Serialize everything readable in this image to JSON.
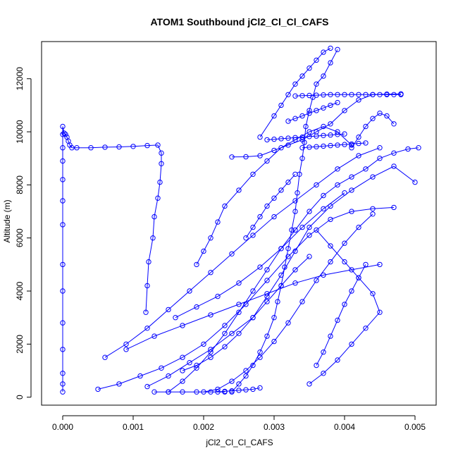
{
  "chart_data": {
    "type": "line",
    "title": "ATOM1 Southbound jCl2_Cl_Cl_CAFS",
    "xlabel": "jCl2_Cl_Cl_CAFS",
    "ylabel": "Altitude (m)",
    "xlim": [
      -0.0003,
      0.0053
    ],
    "ylim": [
      -300,
      13400
    ],
    "x_ticks": [
      0.0,
      0.001,
      0.002,
      0.003,
      0.004,
      0.005
    ],
    "x_tick_labels": [
      "0.000",
      "0.001",
      "0.002",
      "0.003",
      "0.004",
      "0.005"
    ],
    "y_ticks": [
      0,
      2000,
      4000,
      6000,
      8000,
      10000,
      12000
    ],
    "y_tick_labels": [
      "0",
      "2000",
      "4000",
      "6000",
      "8000",
      "10000",
      "12000"
    ],
    "grid": false,
    "marker": "open-circle",
    "color": "#0000ff",
    "series": [
      {
        "x": [
          0.0,
          0.0,
          0.0,
          0.0,
          0.0,
          0.0,
          0.0,
          0.0,
          0.0,
          0.0,
          0.0,
          0.0,
          0.0,
          0.0,
          2e-05,
          4e-05,
          6e-05,
          8e-05,
          0.0001,
          0.00013,
          0.0002,
          0.0004,
          0.0006,
          0.0008,
          0.001,
          0.0012,
          0.00135,
          0.0014,
          0.0014,
          0.00138,
          0.00135,
          0.0013,
          0.00128,
          0.00122,
          0.0012,
          0.00118
        ],
        "y": [
          200,
          500,
          900,
          1800,
          2800,
          4000,
          5000,
          6500,
          7400,
          8200,
          8900,
          9400,
          9900,
          10200,
          9950,
          9900,
          9800,
          9650,
          9500,
          9400,
          9400,
          9400,
          9420,
          9430,
          9450,
          9480,
          9500,
          9200,
          8800,
          8100,
          7500,
          6800,
          6000,
          5100,
          4200,
          3200
        ]
      },
      {
        "x": [
          0.0024,
          0.0025,
          0.0026,
          0.0027,
          0.0028,
          0.0029,
          0.003,
          0.00305,
          0.0031,
          0.00315,
          0.0032,
          0.00325,
          0.0033,
          0.00333,
          0.00336,
          0.0034,
          0.00343,
          0.00345,
          0.0035,
          0.00355,
          0.0036,
          0.0037,
          0.0038,
          0.0039
        ],
        "y": [
          200,
          500,
          800,
          1200,
          1700,
          2300,
          3000,
          3600,
          4200,
          4900,
          5600,
          6300,
          7000,
          7700,
          8400,
          9000,
          9600,
          10200,
          10800,
          11300,
          11800,
          12100,
          12600,
          13100
        ]
      },
      {
        "x": [
          0.0015,
          0.0017,
          0.0019,
          0.0021,
          0.0023,
          0.0025,
          0.0027,
          0.0029,
          0.0031,
          0.0033,
          0.0035,
          0.0037,
          0.0039,
          0.0041,
          0.0043,
          0.0045,
          0.0047,
          0.0049,
          0.00505
        ],
        "y": [
          200,
          600,
          1100,
          1700,
          2400,
          3200,
          4000,
          4800,
          5600,
          6300,
          7000,
          7600,
          8000,
          8300,
          8600,
          9000,
          9200,
          9350,
          9400
        ]
      },
      {
        "x": [
          0.0012,
          0.0015,
          0.0018,
          0.0021,
          0.0024,
          0.0027,
          0.0029,
          0.0031,
          0.0033,
          0.0035,
          0.0038,
          0.0041,
          0.0044,
          0.0047,
          0.005
        ],
        "y": [
          400,
          800,
          1300,
          1800,
          2400,
          3000,
          3800,
          4600,
          5500,
          6400,
          7200,
          7800,
          8300,
          8700,
          8100
        ]
      },
      {
        "x": [
          0.0006,
          0.0009,
          0.0012,
          0.0015,
          0.0018,
          0.0021,
          0.0024,
          0.0027,
          0.003,
          0.0033,
          0.0036,
          0.0039,
          0.0042,
          0.0045
        ],
        "y": [
          1500,
          2000,
          2600,
          3300,
          4000,
          4700,
          5400,
          6100,
          6800,
          7400,
          8000,
          8600,
          9100,
          9400
        ]
      },
      {
        "x": [
          0.0005,
          0.0008,
          0.0011,
          0.0014,
          0.0017,
          0.002,
          0.0023,
          0.0026,
          0.0029,
          0.0032,
          0.0035,
          0.0038,
          0.0041,
          0.0044,
          0.0047
        ],
        "y": [
          300,
          500,
          800,
          1100,
          1500,
          2000,
          2700,
          3500,
          4400,
          5300,
          6100,
          6700,
          7000,
          7100,
          7150
        ]
      },
      {
        "x": [
          0.0019,
          0.002,
          0.0021,
          0.0022,
          0.0023,
          0.0025,
          0.0027,
          0.0029,
          0.0031,
          0.0033,
          0.0035,
          0.0037,
          0.0039,
          0.0041
        ],
        "y": [
          5000,
          5500,
          6000,
          6600,
          7200,
          7800,
          8400,
          8900,
          9400,
          9700,
          10000,
          10200,
          10000,
          9500
        ]
      },
      {
        "x": [
          0.0024,
          0.0026,
          0.0028,
          0.003,
          0.0032,
          0.0034,
          0.0036,
          0.0038,
          0.004,
          0.0042,
          0.0044,
          0.0046,
          0.0048
        ],
        "y": [
          9050,
          9060,
          9100,
          9300,
          9500,
          9700,
          10000,
          10300,
          10800,
          11200,
          11400,
          11420,
          11430
        ]
      },
      {
        "x": [
          0.0028,
          0.003,
          0.0031,
          0.0032,
          0.0033,
          0.0034,
          0.0035,
          0.0036,
          0.0037,
          0.0038
        ],
        "y": [
          9800,
          10600,
          11000,
          11400,
          11800,
          12100,
          12400,
          12700,
          13000,
          13150
        ]
      },
      {
        "x": [
          0.002,
          0.0022,
          0.0024,
          0.0026,
          0.0028,
          0.003,
          0.0032,
          0.0034,
          0.0036,
          0.0038,
          0.004,
          0.0042,
          0.0044
        ],
        "y": [
          200,
          300,
          600,
          1000,
          1500,
          2100,
          2800,
          3600,
          4400,
          5100,
          5800,
          6400,
          6900
        ]
      },
      {
        "x": [
          0.0035,
          0.0037,
          0.0039,
          0.0041,
          0.0043,
          0.0045,
          0.0044,
          0.0042,
          0.004,
          0.0038,
          0.0036
        ],
        "y": [
          500,
          900,
          1400,
          2000,
          2600,
          3200,
          3900,
          4500,
          5100,
          5700,
          6300
        ]
      },
      {
        "x": [
          0.0009,
          0.0013,
          0.0017,
          0.0021,
          0.0025,
          0.0029,
          0.0033,
          0.0037,
          0.0041,
          0.0045
        ],
        "y": [
          1800,
          2300,
          2700,
          3100,
          3500,
          3900,
          4300,
          4600,
          4800,
          5000
        ]
      },
      {
        "x": [
          0.0016,
          0.0019,
          0.0022,
          0.0025,
          0.0028,
          0.0031,
          0.0034,
          0.0037,
          0.004
        ],
        "y": [
          3000,
          3400,
          3800,
          4300,
          4900,
          5600,
          6400,
          7100,
          7700
        ]
      },
      {
        "x": [
          0.0036,
          0.0037,
          0.0038,
          0.0039,
          0.004,
          0.0041,
          0.0042,
          0.0043
        ],
        "y": [
          1200,
          1700,
          2300,
          2900,
          3500,
          4000,
          4500,
          5000
        ]
      },
      {
        "x": [
          0.0029,
          0.003,
          0.0031,
          0.0032,
          0.0033,
          0.0034,
          0.0035,
          0.0036,
          0.0037,
          0.0038,
          0.0039,
          0.004
        ],
        "y": [
          9700,
          9720,
          9740,
          9760,
          9780,
          9800,
          9820,
          9840,
          9860,
          9880,
          9900,
          9920
        ]
      },
      {
        "x": [
          0.0034,
          0.0035,
          0.0036,
          0.0037,
          0.0038,
          0.0039,
          0.004,
          0.0041,
          0.0042,
          0.0043
        ],
        "y": [
          9400,
          9420,
          9440,
          9460,
          9480,
          9500,
          9520,
          9540,
          9560,
          9580
        ]
      },
      {
        "x": [
          0.0033,
          0.0034,
          0.0035,
          0.0036,
          0.0037,
          0.0038,
          0.0039,
          0.004,
          0.0041,
          0.0042,
          0.0043,
          0.0044,
          0.0045,
          0.0046,
          0.0047,
          0.0048
        ],
        "y": [
          11350,
          11360,
          11370,
          11380,
          11390,
          11400,
          11400,
          11400,
          11400,
          11400,
          11400,
          11400,
          11400,
          11400,
          11400,
          11400
        ]
      },
      {
        "x": [
          0.0022,
          0.0023,
          0.0024,
          0.0025,
          0.0026,
          0.0027,
          0.0028
        ],
        "y": [
          200,
          220,
          240,
          260,
          280,
          300,
          350
        ]
      },
      {
        "x": [
          0.0013,
          0.0015,
          0.0017,
          0.0019,
          0.0021,
          0.0023
        ],
        "y": [
          200,
          200,
          200,
          200,
          200,
          200
        ]
      },
      {
        "x": [
          0.0032,
          0.0033,
          0.0034,
          0.0035,
          0.0036,
          0.0037,
          0.0038,
          0.0039
        ],
        "y": [
          10400,
          10500,
          10600,
          10700,
          10800,
          10900,
          11000,
          11100
        ]
      },
      {
        "x": [
          0.0041,
          0.0042,
          0.0043,
          0.0044,
          0.0045,
          0.0046,
          0.0047
        ],
        "y": [
          9400,
          9800,
          10200,
          10500,
          10700,
          10600,
          10300
        ]
      },
      {
        "x": [
          0.0026,
          0.0027,
          0.0028,
          0.0029,
          0.003,
          0.0031,
          0.0032,
          0.0033
        ],
        "y": [
          6000,
          6400,
          6800,
          7200,
          7500,
          7800,
          8100,
          8400
        ]
      },
      {
        "x": [
          0.0017,
          0.0019,
          0.0021,
          0.0023,
          0.0025,
          0.0027,
          0.0029,
          0.0031,
          0.0033,
          0.0035
        ],
        "y": [
          1000,
          1200,
          1500,
          1900,
          2400,
          3000,
          3600,
          4200,
          4800,
          5300
        ]
      }
    ]
  }
}
